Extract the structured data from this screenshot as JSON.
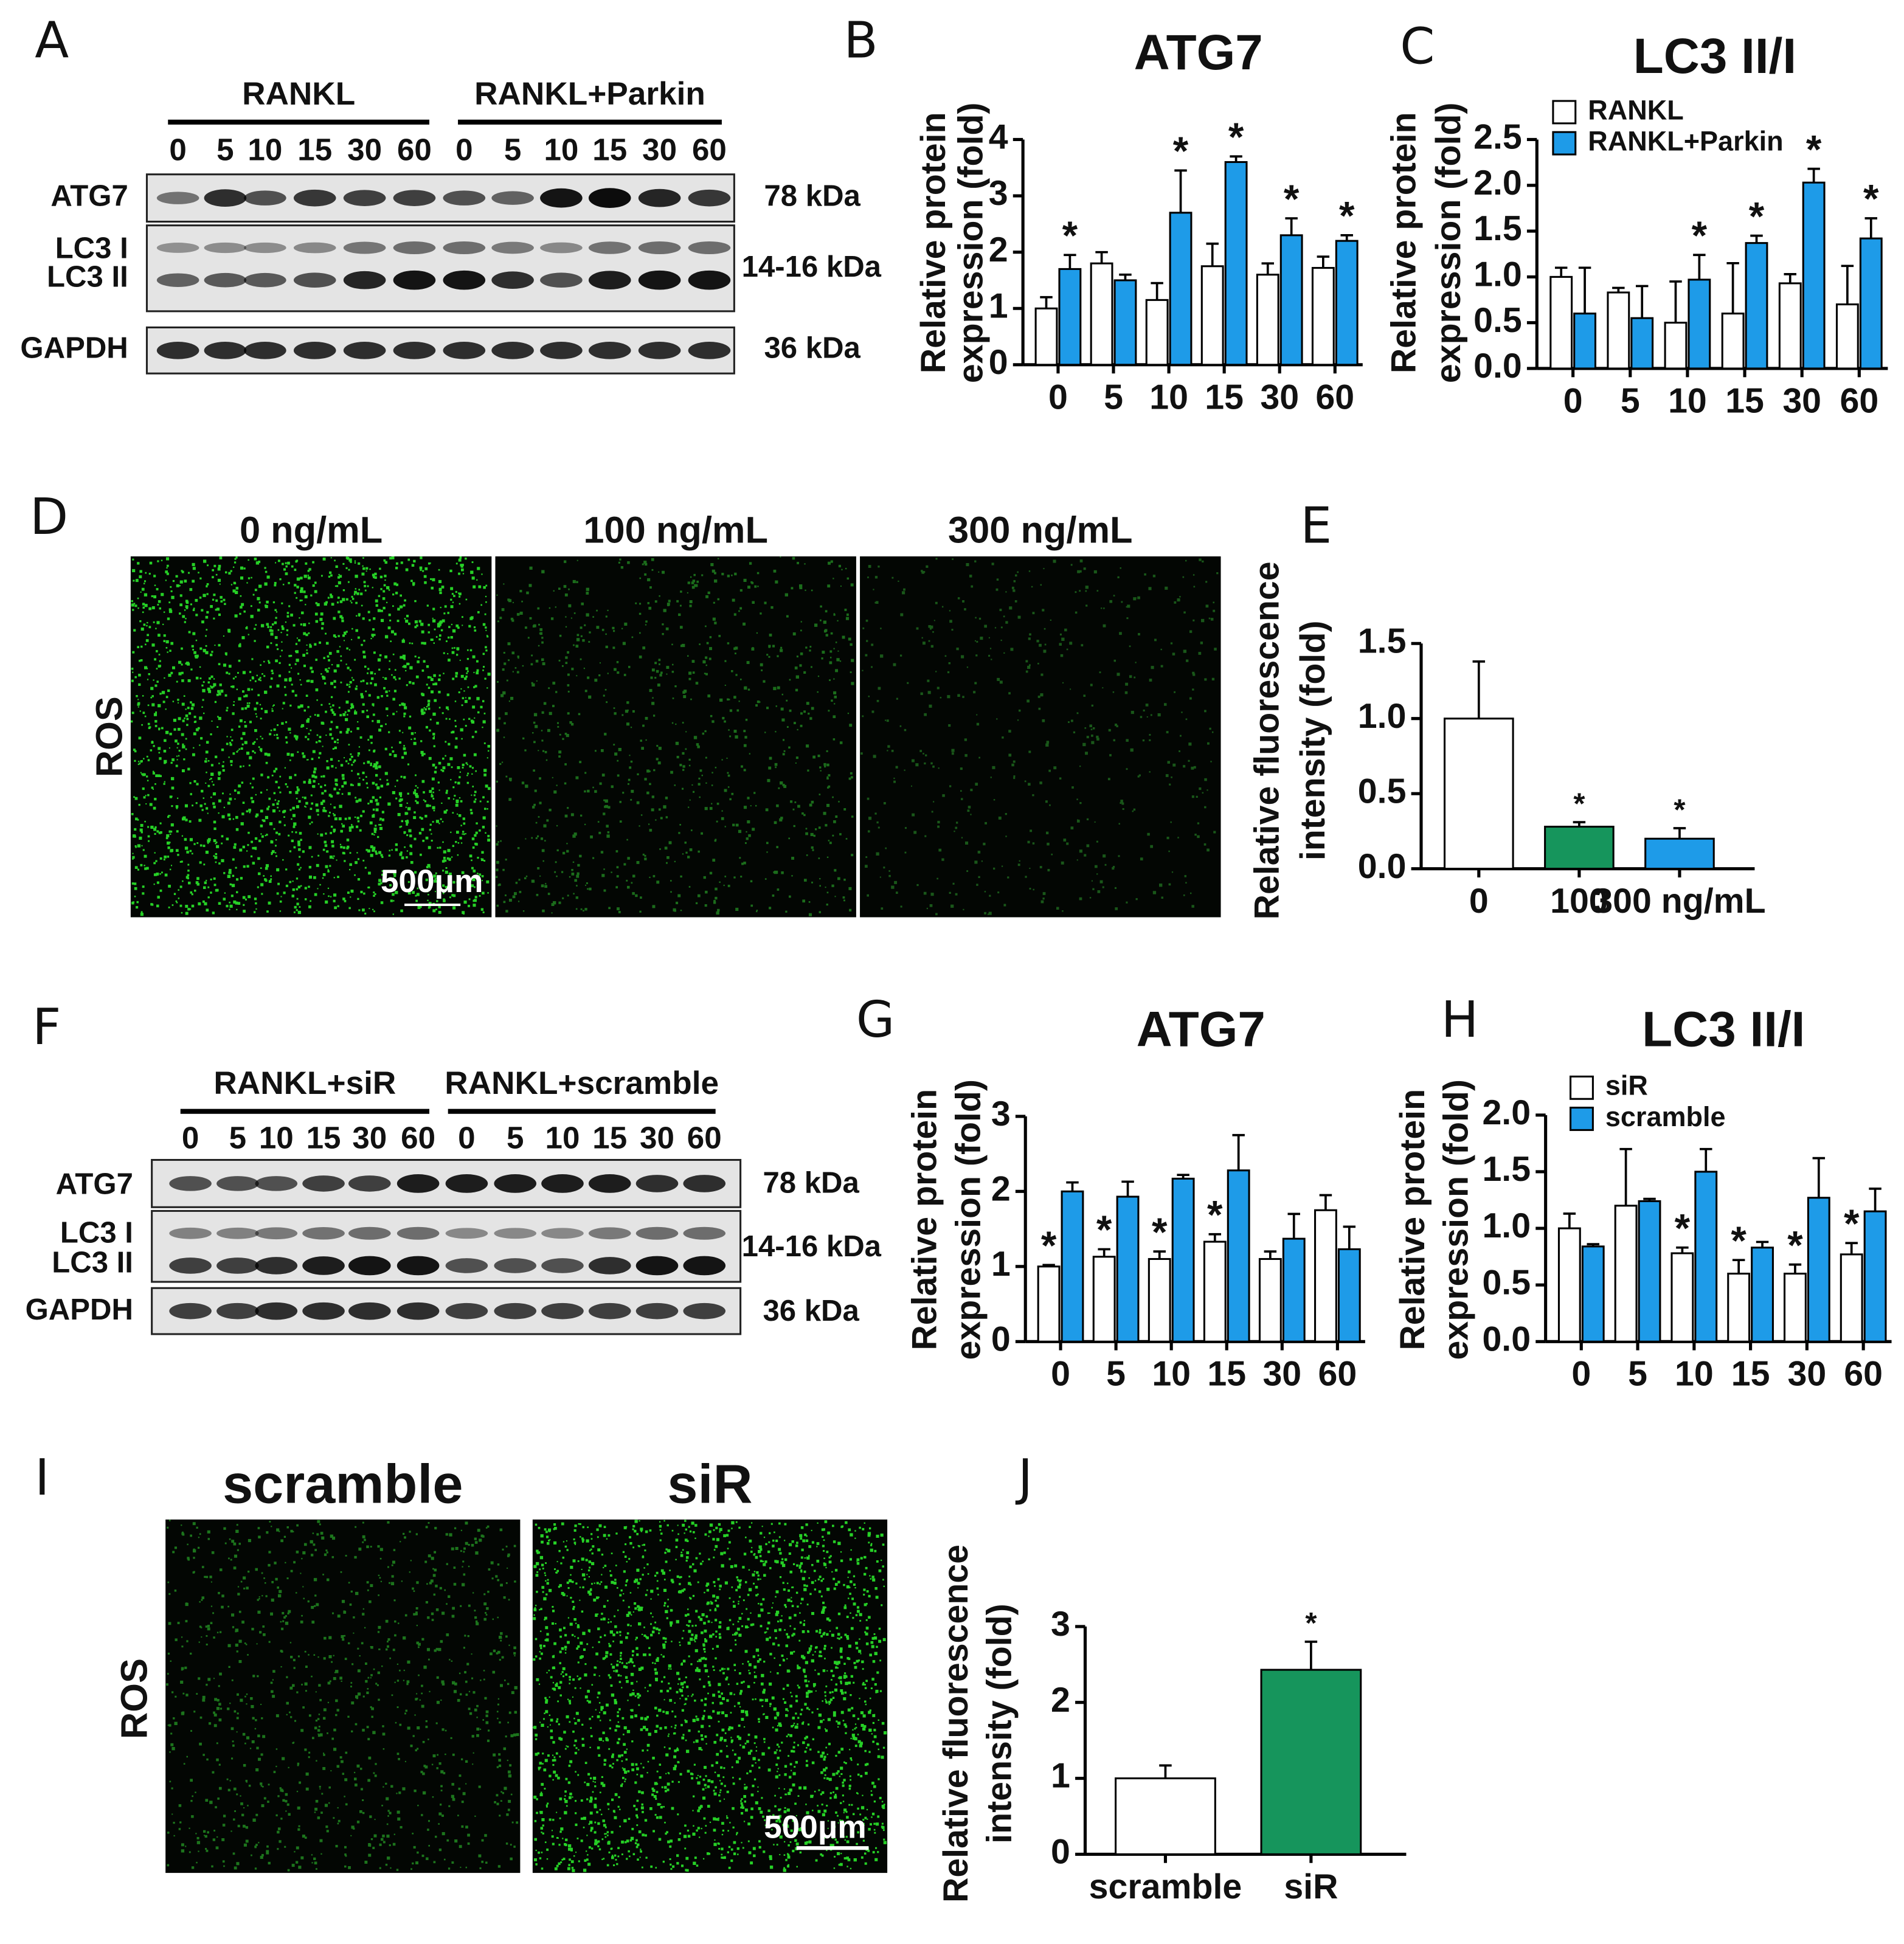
{
  "panel_letters": [
    "A",
    "B",
    "C",
    "D",
    "E",
    "F",
    "G",
    "H",
    "I",
    "J"
  ],
  "blots": [
    {
      "groups": [
        "RANKL",
        "RANKL+Parkin"
      ],
      "lanes": [
        "0",
        "5",
        "10",
        "15",
        "30",
        "60",
        "0",
        "5",
        "10",
        "15",
        "30",
        "60"
      ],
      "bands": [
        {
          "names": [
            "ATG7"
          ],
          "size": "78 kDa"
        },
        {
          "names": [
            "LC3 I",
            "LC3 II"
          ],
          "size": "14-16 kDa"
        },
        {
          "names": [
            "GAPDH"
          ],
          "size": "36 kDa"
        }
      ]
    },
    {
      "groups": [
        "RANKL+siR",
        "RANKL+scramble"
      ],
      "lanes": [
        "0",
        "5",
        "10",
        "15",
        "30",
        "60",
        "0",
        "5",
        "10",
        "15",
        "30",
        "60"
      ],
      "bands": [
        {
          "names": [
            "ATG7"
          ],
          "size": "78 kDa"
        },
        {
          "names": [
            "LC3 I",
            "LC3 II"
          ],
          "size": "14-16 kDa"
        },
        {
          "names": [
            "GAPDH"
          ],
          "size": "36 kDa"
        }
      ]
    }
  ],
  "micrographs": [
    {
      "titles": [
        "0 ng/mL",
        "100 ng/mL",
        "300 ng/mL"
      ],
      "label": "ROS",
      "scale_bar": "500μm"
    },
    {
      "titles": [
        "scramble",
        "siR"
      ],
      "label": "ROS",
      "scale_bar": "500μm"
    }
  ],
  "chart_data": [
    {
      "type": "bar",
      "title": "ATG7",
      "ylabel": [
        "Relative protein",
        "expression (fold)"
      ],
      "categories": [
        "0",
        "5",
        "10",
        "15",
        "30",
        "60"
      ],
      "series": [
        {
          "color": "#ffffff",
          "values": [
            1.0,
            1.8,
            1.15,
            1.75,
            1.6,
            1.72
          ],
          "error": [
            0.2,
            0.2,
            0.3,
            0.4,
            0.2,
            0.2
          ],
          "significance": [
            null,
            null,
            null,
            null,
            null,
            null
          ]
        },
        {
          "color": "#1e9be8",
          "values": [
            1.7,
            1.5,
            2.7,
            3.6,
            2.3,
            2.2
          ],
          "error": [
            0.25,
            0.1,
            0.75,
            0.1,
            0.3,
            0.1
          ],
          "significance": [
            "*",
            null,
            "*",
            "*",
            "*",
            "*"
          ]
        }
      ],
      "ylim": [
        0,
        4
      ],
      "yticks": [
        0,
        1,
        2,
        3,
        4
      ]
    },
    {
      "type": "bar",
      "title": "LC3 II/I",
      "ylabel": [
        "Relative protein",
        "expression (fold)"
      ],
      "categories": [
        "0",
        "5",
        "10",
        "15",
        "30",
        "60"
      ],
      "series": [
        {
          "name": "RANKL",
          "color": "#ffffff",
          "values": [
            1.0,
            0.83,
            0.5,
            0.6,
            0.93,
            0.7
          ],
          "error": [
            0.1,
            0.05,
            0.45,
            0.55,
            0.1,
            0.42
          ],
          "significance": [
            null,
            null,
            null,
            null,
            null,
            null
          ]
        },
        {
          "name": "RANKL+Parkin",
          "color": "#1e9be8",
          "values": [
            0.6,
            0.55,
            0.97,
            1.37,
            2.03,
            1.42
          ],
          "error": [
            0.5,
            0.35,
            0.27,
            0.08,
            0.15,
            0.22
          ],
          "significance": [
            null,
            null,
            "*",
            "*",
            "*",
            "*"
          ]
        }
      ],
      "ylim": [
        0,
        2.5
      ],
      "yticks": [
        {
          "value": 0,
          "label": "0.0"
        },
        0.5,
        {
          "value": 1,
          "label": "1.0"
        },
        1.5,
        {
          "value": 2,
          "label": "2.0"
        },
        2.5
      ]
    },
    {
      "type": "bar",
      "ylabel": [
        "Relative fluorescence",
        "intensity (fold)"
      ],
      "categories": [
        "0",
        "100",
        "300 ng/mL"
      ],
      "values": [
        1.0,
        0.28,
        0.2
      ],
      "error": [
        0.38,
        0.03,
        0.07
      ],
      "significance": [
        null,
        "*",
        "*"
      ],
      "colors": [
        "#ffffff",
        "#16955c",
        "#1e9be8"
      ],
      "ylim": [
        0,
        1.5
      ],
      "yticks": [
        {
          "value": 0,
          "label": "0.0"
        },
        0.5,
        {
          "value": 1,
          "label": "1.0"
        },
        1.5
      ]
    },
    {
      "type": "bar",
      "title": "ATG7",
      "ylabel": [
        "Relative protein",
        "expression (fold)"
      ],
      "categories": [
        "0",
        "5",
        "10",
        "15",
        "30",
        "60"
      ],
      "series": [
        {
          "color": "#ffffff",
          "values": [
            1.0,
            1.13,
            1.1,
            1.33,
            1.1,
            1.75
          ],
          "error": [
            0.02,
            0.1,
            0.1,
            0.1,
            0.1,
            0.2
          ],
          "significance": [
            "*",
            "*",
            "*",
            "*",
            null,
            null
          ]
        },
        {
          "color": "#1e9be8",
          "values": [
            2.0,
            1.93,
            2.17,
            2.28,
            1.37,
            1.23
          ],
          "error": [
            0.12,
            0.2,
            0.05,
            0.47,
            0.33,
            0.3
          ],
          "significance": [
            null,
            null,
            null,
            null,
            null,
            null
          ]
        }
      ],
      "ylim": [
        0,
        3
      ],
      "yticks": [
        0,
        1,
        2,
        3
      ]
    },
    {
      "type": "bar",
      "title": "LC3 II/I",
      "ylabel": [
        "Relative protein",
        "expression (fold)"
      ],
      "categories": [
        "0",
        "5",
        "10",
        "15",
        "30",
        "60"
      ],
      "series": [
        {
          "name": "siR",
          "color": "#ffffff",
          "values": [
            1.0,
            1.2,
            0.78,
            0.6,
            0.6,
            0.77
          ],
          "error": [
            0.13,
            0.5,
            0.05,
            0.12,
            0.08,
            0.1
          ],
          "significance": [
            null,
            null,
            "*",
            "*",
            "*",
            "*"
          ]
        },
        {
          "name": "scramble",
          "color": "#1e9be8",
          "values": [
            0.84,
            1.24,
            1.5,
            0.83,
            1.27,
            1.15
          ],
          "error": [
            0.02,
            0.02,
            0.2,
            0.05,
            0.35,
            0.2
          ],
          "significance": [
            null,
            null,
            null,
            null,
            null,
            null
          ]
        }
      ],
      "ylim": [
        0,
        2
      ],
      "yticks": [
        {
          "value": 0,
          "label": "0.0"
        },
        0.5,
        {
          "value": 1,
          "label": "1.0"
        },
        1.5,
        {
          "value": 2,
          "label": "2.0"
        }
      ]
    },
    {
      "type": "bar",
      "ylabel": [
        "Relative fluorescence",
        "intensity (fold)"
      ],
      "categories": [
        "scramble",
        "siR"
      ],
      "values": [
        1.0,
        2.43
      ],
      "error": [
        0.17,
        0.37
      ],
      "significance": [
        null,
        "*"
      ],
      "colors": [
        "#ffffff",
        "#16955c"
      ],
      "ylim": [
        0,
        3
      ],
      "yticks": [
        0,
        1,
        2,
        3
      ]
    }
  ]
}
